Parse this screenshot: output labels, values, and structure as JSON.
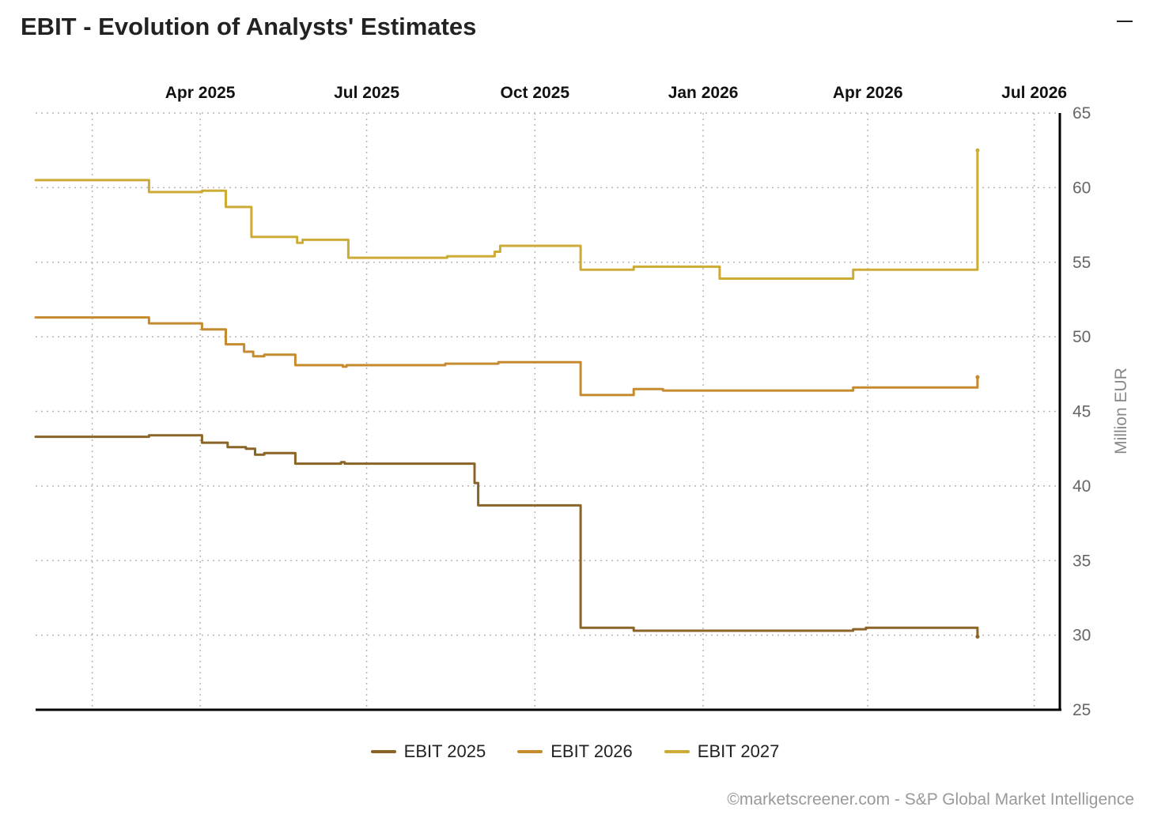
{
  "header": {
    "title": "EBIT - Evolution of Analysts' Estimates"
  },
  "credits": "©marketscreener.com - S&P Global Market Intelligence",
  "chart_data": {
    "type": "line",
    "title": "EBIT - Evolution of Analysts' Estimates",
    "ylabel": "Million EUR",
    "ylim": [
      25,
      65
    ],
    "y_ticks": [
      25,
      30,
      35,
      40,
      45,
      50,
      55,
      60,
      65
    ],
    "y_axis_position": "right",
    "xlim": [
      "2025-01-01",
      "2026-07-15"
    ],
    "x_axis_position": "top",
    "x_ticks": [
      {
        "date": "2025-02-01",
        "label": ""
      },
      {
        "date": "2025-04-01",
        "label": "Apr 2025"
      },
      {
        "date": "2025-07-01",
        "label": "Jul 2025"
      },
      {
        "date": "2025-10-01",
        "label": "Oct 2025"
      },
      {
        "date": "2026-01-01",
        "label": "Jan 2026"
      },
      {
        "date": "2026-04-01",
        "label": "Apr 2026"
      },
      {
        "date": "2026-07-01",
        "label": "Jul 2026"
      }
    ],
    "grid": true,
    "legend": "bottom-center",
    "step": true,
    "series": [
      {
        "name": "EBIT 2025",
        "color": "#8B6428",
        "points": [
          [
            "2025-01-01",
            43.3
          ],
          [
            "2025-03-04",
            43.4
          ],
          [
            "2025-04-02",
            42.9
          ],
          [
            "2025-04-16",
            42.6
          ],
          [
            "2025-04-26",
            42.5
          ],
          [
            "2025-05-01",
            42.1
          ],
          [
            "2025-05-06",
            42.2
          ],
          [
            "2025-05-23",
            41.5
          ],
          [
            "2025-06-17",
            41.6
          ],
          [
            "2025-06-19",
            41.5
          ],
          [
            "2025-08-29",
            40.2
          ],
          [
            "2025-08-31",
            38.7
          ],
          [
            "2025-10-26",
            30.5
          ],
          [
            "2025-11-24",
            30.3
          ],
          [
            "2026-03-24",
            30.4
          ],
          [
            "2026-03-31",
            30.5
          ],
          [
            "2026-05-31",
            29.9
          ]
        ]
      },
      {
        "name": "EBIT 2026",
        "color": "#C68B2E",
        "points": [
          [
            "2025-01-01",
            51.3
          ],
          [
            "2025-03-04",
            50.9
          ],
          [
            "2025-04-02",
            50.5
          ],
          [
            "2025-04-15",
            49.5
          ],
          [
            "2025-04-25",
            49.0
          ],
          [
            "2025-04-30",
            48.7
          ],
          [
            "2025-05-06",
            48.8
          ],
          [
            "2025-05-23",
            48.1
          ],
          [
            "2025-06-18",
            48.0
          ],
          [
            "2025-06-20",
            48.1
          ],
          [
            "2025-08-13",
            48.2
          ],
          [
            "2025-09-11",
            48.3
          ],
          [
            "2025-10-26",
            46.1
          ],
          [
            "2025-11-24",
            46.5
          ],
          [
            "2025-12-10",
            46.4
          ],
          [
            "2026-03-24",
            46.6
          ],
          [
            "2026-05-31",
            47.3
          ]
        ]
      },
      {
        "name": "EBIT 2027",
        "color": "#CDAB35",
        "points": [
          [
            "2025-01-01",
            60.5
          ],
          [
            "2025-03-04",
            59.7
          ],
          [
            "2025-04-02",
            59.8
          ],
          [
            "2025-04-15",
            58.7
          ],
          [
            "2025-04-29",
            56.7
          ],
          [
            "2025-05-24",
            56.3
          ],
          [
            "2025-05-27",
            56.5
          ],
          [
            "2025-06-21",
            55.3
          ],
          [
            "2025-08-14",
            55.4
          ],
          [
            "2025-09-09",
            55.7
          ],
          [
            "2025-09-12",
            56.1
          ],
          [
            "2025-10-26",
            54.5
          ],
          [
            "2025-11-24",
            54.7
          ],
          [
            "2026-01-10",
            53.9
          ],
          [
            "2026-03-24",
            54.5
          ],
          [
            "2026-05-31",
            62.5
          ]
        ]
      }
    ]
  }
}
